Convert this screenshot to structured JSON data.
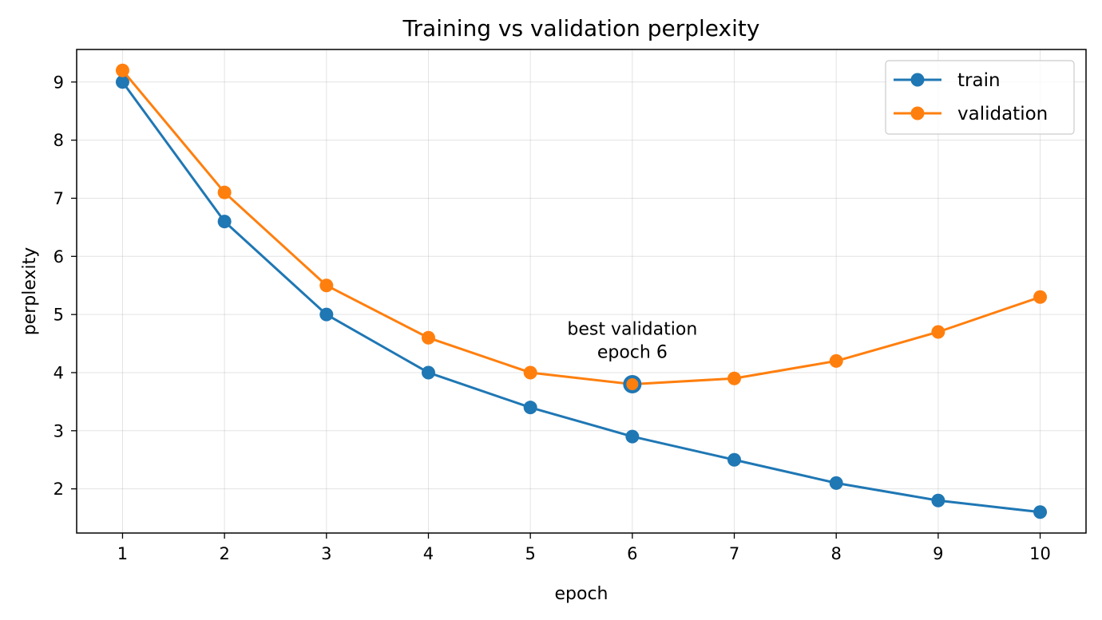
{
  "chart_data": {
    "type": "line",
    "title": "Training vs validation perplexity",
    "xlabel": "epoch",
    "ylabel": "perplexity",
    "x": [
      1,
      2,
      3,
      4,
      5,
      6,
      7,
      8,
      9,
      10
    ],
    "xlim": [
      0.55,
      10.45
    ],
    "ylim": [
      1.24,
      9.56
    ],
    "xticks": [
      1,
      2,
      3,
      4,
      5,
      6,
      7,
      8,
      9,
      10
    ],
    "yticks": [
      2,
      3,
      4,
      5,
      6,
      7,
      8,
      9
    ],
    "grid": true,
    "legend_position": "top-right",
    "series": [
      {
        "name": "train",
        "color": "#1f77b4",
        "values": [
          9.0,
          6.6,
          5.0,
          4.0,
          3.4,
          2.9,
          2.5,
          2.1,
          1.8,
          1.6
        ]
      },
      {
        "name": "validation",
        "color": "#ff7f0e",
        "values": [
          9.2,
          7.1,
          5.5,
          4.6,
          4.0,
          3.8,
          3.9,
          4.2,
          4.7,
          5.3
        ]
      }
    ],
    "annotation": {
      "lines": [
        "best validation",
        "epoch 6"
      ],
      "x": 6,
      "y": 3.8
    }
  }
}
